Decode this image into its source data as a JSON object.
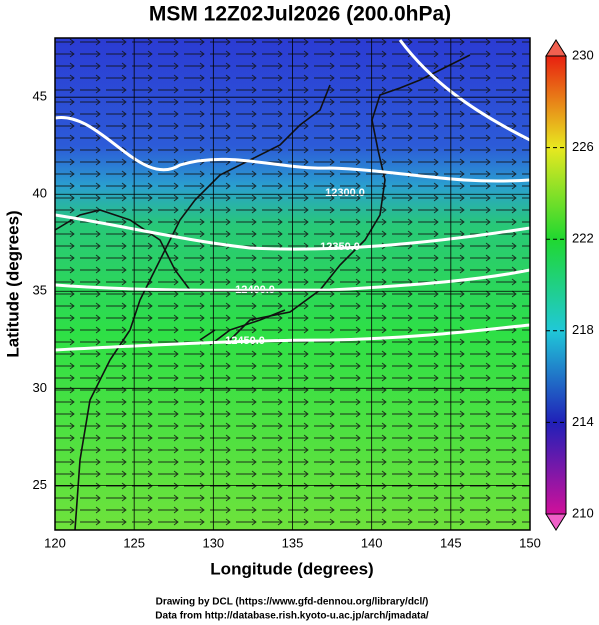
{
  "title": "MSM 12Z02Jul2026 (200.0hPa)",
  "x_axis": {
    "label": "Longitude (degrees)",
    "lim": [
      120,
      150
    ],
    "ticks": [
      120,
      125,
      130,
      135,
      140,
      145,
      150
    ]
  },
  "y_axis": {
    "label": "Latitude  (degrees)",
    "lim": [
      22.7,
      48.05
    ],
    "ticks": [
      25,
      30,
      35,
      40,
      45
    ]
  },
  "colorbar": {
    "lim": [
      210,
      230
    ],
    "ticks": [
      210,
      214,
      218,
      222,
      226,
      230
    ]
  },
  "contour_labels": [
    "12300.0",
    "12350.0",
    "12400.0",
    "12450.0"
  ],
  "footer": [
    "Drawing by DCL (https://www.gfd-dennou.org/library/dcl/)",
    "Data from http://database.rish.kyoto-u.ac.jp/arch/jmadata/"
  ]
}
